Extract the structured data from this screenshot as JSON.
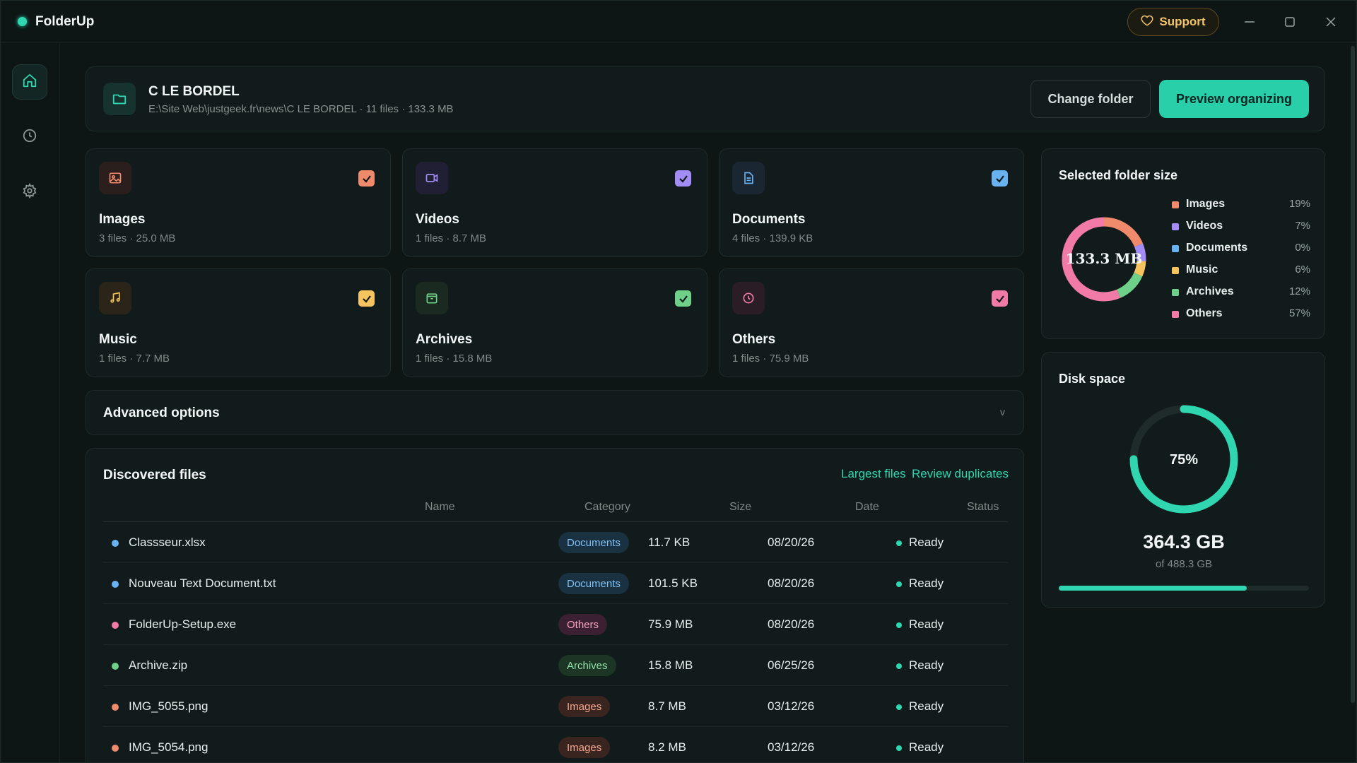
{
  "app": {
    "title": "FolderUp"
  },
  "titlebar": {
    "support_label": "Support"
  },
  "sidebar": {
    "items": [
      {
        "name": "home",
        "icon": "home-icon",
        "active": true
      },
      {
        "name": "history",
        "icon": "clock-icon",
        "active": false
      },
      {
        "name": "settings",
        "icon": "gear-icon",
        "active": false
      }
    ]
  },
  "folder": {
    "name": "C LE BORDEL",
    "details": "E:\\Site Web\\justgeek.fr\\news\\C LE BORDEL · 11 files · 133.3 MB",
    "change_label": "Change folder",
    "preview_label": "Preview organizing"
  },
  "categories": [
    {
      "title": "Images",
      "meta": "3 files · 25.0 MB",
      "color": "#f08a6c",
      "icon": "image-icon",
      "checked": true
    },
    {
      "title": "Videos",
      "meta": "1 files · 8.7 MB",
      "color": "#a28cf5",
      "icon": "video-icon",
      "checked": true
    },
    {
      "title": "Documents",
      "meta": "4 files · 139.9 KB",
      "color": "#69b2f2",
      "icon": "document-icon",
      "checked": true
    },
    {
      "title": "Music",
      "meta": "1 files · 7.7 MB",
      "color": "#f5c45e",
      "icon": "music-icon",
      "checked": true
    },
    {
      "title": "Archives",
      "meta": "1 files · 15.8 MB",
      "color": "#6fd08a",
      "icon": "archive-icon",
      "checked": true
    },
    {
      "title": "Others",
      "meta": "1 files · 75.9 MB",
      "color": "#f27aa6",
      "icon": "clock-icon",
      "checked": true
    }
  ],
  "advanced": {
    "label": "Advanced options",
    "chevron": "v"
  },
  "files": {
    "title": "Discovered files",
    "largest_label": "Largest files",
    "duplicates_label": "Review duplicates",
    "columns": [
      "Name",
      "Category",
      "Size",
      "Date",
      "Status"
    ],
    "rows": [
      {
        "name": "Classseur.xlsx",
        "category": "Documents",
        "size": "11.7 KB",
        "date": "08/20/26",
        "status": "Ready",
        "color": "#69b2f2"
      },
      {
        "name": "Nouveau Text Document.txt",
        "category": "Documents",
        "size": "101.5 KB",
        "date": "08/20/26",
        "status": "Ready",
        "color": "#69b2f2"
      },
      {
        "name": "FolderUp-Setup.exe",
        "category": "Others",
        "size": "75.9 MB",
        "date": "08/20/26",
        "status": "Ready",
        "color": "#f27aa6"
      },
      {
        "name": "Archive.zip",
        "category": "Archives",
        "size": "15.8 MB",
        "date": "06/25/26",
        "status": "Ready",
        "color": "#6fd08a"
      },
      {
        "name": "IMG_5055.png",
        "category": "Images",
        "size": "8.7 MB",
        "date": "03/12/26",
        "status": "Ready",
        "color": "#f08a6c"
      },
      {
        "name": "IMG_5054.png",
        "category": "Images",
        "size": "8.2 MB",
        "date": "03/12/26",
        "status": "Ready",
        "color": "#f08a6c"
      }
    ]
  },
  "folder_size": {
    "title": "Selected folder size",
    "center_label": "133.3 MB",
    "legend": [
      {
        "name": "Images",
        "pct": "19%",
        "value": 19,
        "color": "#f08a6c"
      },
      {
        "name": "Videos",
        "pct": "7%",
        "value": 7,
        "color": "#a28cf5"
      },
      {
        "name": "Documents",
        "pct": "0%",
        "value": 0,
        "color": "#69b2f2"
      },
      {
        "name": "Music",
        "pct": "6%",
        "value": 6,
        "color": "#f5c45e"
      },
      {
        "name": "Archives",
        "pct": "12%",
        "value": 12,
        "color": "#6fd08a"
      },
      {
        "name": "Others",
        "pct": "57%",
        "value": 57,
        "color": "#f27aa6"
      }
    ]
  },
  "disk": {
    "title": "Disk space",
    "percent_label": "75%",
    "percent": 75,
    "bar_fill": 0.75,
    "used": "364.3 GB",
    "total": "of 488.3 GB"
  },
  "colors": {
    "accent": "#2fd6b0",
    "support": "#f3c46a"
  }
}
